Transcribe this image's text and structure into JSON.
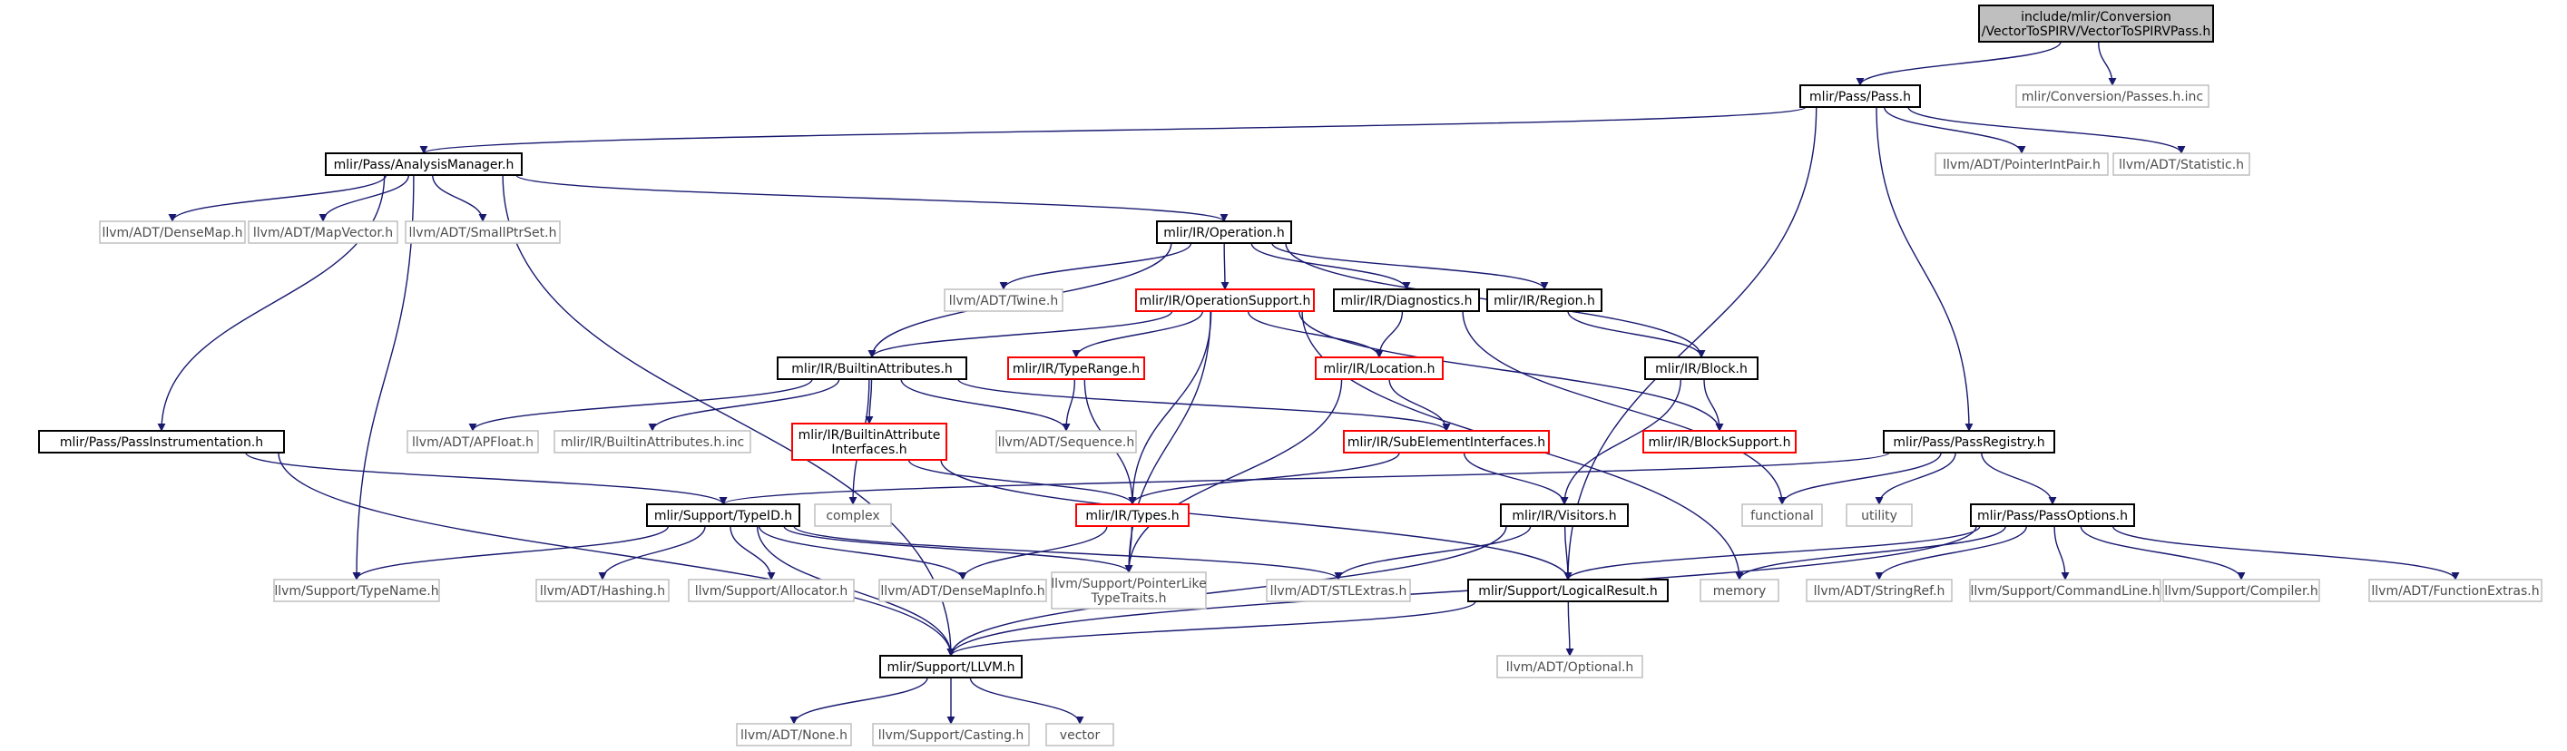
{
  "diagram": {
    "colors": {
      "edge": "#191970",
      "documented_border": "#000000",
      "external_border": "#bfbfbf",
      "truncated_border": "#ff0000",
      "focus_fill": "#bfbfbf"
    },
    "nodes": [
      {
        "id": "root",
        "lines": [
          "include/mlir/Conversion",
          "/VectorToSPIRV/VectorToSPIRVPass.h"
        ],
        "kind": "focus"
      },
      {
        "id": "pass",
        "lines": [
          "mlir/Pass/Pass.h"
        ],
        "kind": "black"
      },
      {
        "id": "passesinc",
        "lines": [
          "mlir/Conversion/Passes.h.inc"
        ],
        "kind": "gray"
      },
      {
        "id": "analysis",
        "lines": [
          "mlir/Pass/AnalysisManager.h"
        ],
        "kind": "black"
      },
      {
        "id": "pointerintpair",
        "lines": [
          "llvm/ADT/PointerIntPair.h"
        ],
        "kind": "gray"
      },
      {
        "id": "statistic",
        "lines": [
          "llvm/ADT/Statistic.h"
        ],
        "kind": "gray"
      },
      {
        "id": "densemap",
        "lines": [
          "llvm/ADT/DenseMap.h"
        ],
        "kind": "gray"
      },
      {
        "id": "mapvector",
        "lines": [
          "llvm/ADT/MapVector.h"
        ],
        "kind": "gray"
      },
      {
        "id": "smallptrset",
        "lines": [
          "llvm/ADT/SmallPtrSet.h"
        ],
        "kind": "gray"
      },
      {
        "id": "operation",
        "lines": [
          "mlir/IR/Operation.h"
        ],
        "kind": "black"
      },
      {
        "id": "twine",
        "lines": [
          "llvm/ADT/Twine.h"
        ],
        "kind": "gray"
      },
      {
        "id": "opsupport",
        "lines": [
          "mlir/IR/OperationSupport.h"
        ],
        "kind": "red"
      },
      {
        "id": "diagnostics",
        "lines": [
          "mlir/IR/Diagnostics.h"
        ],
        "kind": "black"
      },
      {
        "id": "region",
        "lines": [
          "mlir/IR/Region.h"
        ],
        "kind": "black"
      },
      {
        "id": "builtinattrs",
        "lines": [
          "mlir/IR/BuiltinAttributes.h"
        ],
        "kind": "black"
      },
      {
        "id": "typerange",
        "lines": [
          "mlir/IR/TypeRange.h"
        ],
        "kind": "red"
      },
      {
        "id": "location",
        "lines": [
          "mlir/IR/Location.h"
        ],
        "kind": "red"
      },
      {
        "id": "block",
        "lines": [
          "mlir/IR/Block.h"
        ],
        "kind": "black"
      },
      {
        "id": "apfloat",
        "lines": [
          "llvm/ADT/APFloat.h"
        ],
        "kind": "gray"
      },
      {
        "id": "builtininc",
        "lines": [
          "mlir/IR/BuiltinAttributes.h.inc"
        ],
        "kind": "gray"
      },
      {
        "id": "builtinattrif",
        "lines": [
          "mlir/IR/BuiltinAttribute",
          "Interfaces.h"
        ],
        "kind": "red"
      },
      {
        "id": "sequence",
        "lines": [
          "llvm/ADT/Sequence.h"
        ],
        "kind": "gray"
      },
      {
        "id": "subelem",
        "lines": [
          "mlir/IR/SubElementInterfaces.h"
        ],
        "kind": "red"
      },
      {
        "id": "blocksupport",
        "lines": [
          "mlir/IR/BlockSupport.h"
        ],
        "kind": "red"
      },
      {
        "id": "passreg",
        "lines": [
          "mlir/Pass/PassRegistry.h"
        ],
        "kind": "black"
      },
      {
        "id": "passinstr",
        "lines": [
          "mlir/Pass/PassInstrumentation.h"
        ],
        "kind": "black"
      },
      {
        "id": "typeid",
        "lines": [
          "mlir/Support/TypeID.h"
        ],
        "kind": "black"
      },
      {
        "id": "complex",
        "lines": [
          "complex"
        ],
        "kind": "gray"
      },
      {
        "id": "types",
        "lines": [
          "mlir/IR/Types.h"
        ],
        "kind": "red"
      },
      {
        "id": "visitors",
        "lines": [
          "mlir/IR/Visitors.h"
        ],
        "kind": "black"
      },
      {
        "id": "functional",
        "lines": [
          "functional"
        ],
        "kind": "gray"
      },
      {
        "id": "utility",
        "lines": [
          "utility"
        ],
        "kind": "gray"
      },
      {
        "id": "passoptions",
        "lines": [
          "mlir/Pass/PassOptions.h"
        ],
        "kind": "black"
      },
      {
        "id": "typename",
        "lines": [
          "llvm/Support/TypeName.h"
        ],
        "kind": "gray"
      },
      {
        "id": "hashing",
        "lines": [
          "llvm/ADT/Hashing.h"
        ],
        "kind": "gray"
      },
      {
        "id": "allocator",
        "lines": [
          "llvm/Support/Allocator.h"
        ],
        "kind": "gray"
      },
      {
        "id": "densemapinfo",
        "lines": [
          "llvm/ADT/DenseMapInfo.h"
        ],
        "kind": "gray"
      },
      {
        "id": "pointerlike",
        "lines": [
          "llvm/Support/PointerLike",
          "TypeTraits.h"
        ],
        "kind": "gray"
      },
      {
        "id": "stlextras",
        "lines": [
          "llvm/ADT/STLExtras.h"
        ],
        "kind": "gray"
      },
      {
        "id": "logicalresult",
        "lines": [
          "mlir/Support/LogicalResult.h"
        ],
        "kind": "black"
      },
      {
        "id": "memory",
        "lines": [
          "memory"
        ],
        "kind": "gray"
      },
      {
        "id": "stringref",
        "lines": [
          "llvm/ADT/StringRef.h"
        ],
        "kind": "gray"
      },
      {
        "id": "commandline",
        "lines": [
          "llvm/Support/CommandLine.h"
        ],
        "kind": "gray"
      },
      {
        "id": "compiler",
        "lines": [
          "llvm/Support/Compiler.h"
        ],
        "kind": "gray"
      },
      {
        "id": "functionextras",
        "lines": [
          "llvm/ADT/FunctionExtras.h"
        ],
        "kind": "gray"
      },
      {
        "id": "llvmh",
        "lines": [
          "mlir/Support/LLVM.h"
        ],
        "kind": "black"
      },
      {
        "id": "optional",
        "lines": [
          "llvm/ADT/Optional.h"
        ],
        "kind": "gray"
      },
      {
        "id": "none",
        "lines": [
          "llvm/ADT/None.h"
        ],
        "kind": "gray"
      },
      {
        "id": "casting",
        "lines": [
          "llvm/Support/Casting.h"
        ],
        "kind": "gray"
      },
      {
        "id": "vector",
        "lines": [
          "vector"
        ],
        "kind": "gray"
      }
    ],
    "edges": [
      [
        "root",
        "pass"
      ],
      [
        "root",
        "passesinc"
      ],
      [
        "pass",
        "analysis"
      ],
      [
        "pass",
        "pointerintpair"
      ],
      [
        "pass",
        "statistic"
      ],
      [
        "pass",
        "passreg"
      ],
      [
        "pass",
        "logicalresult"
      ],
      [
        "analysis",
        "densemap"
      ],
      [
        "analysis",
        "mapvector"
      ],
      [
        "analysis",
        "smallptrset"
      ],
      [
        "analysis",
        "operation"
      ],
      [
        "analysis",
        "passinstr"
      ],
      [
        "analysis",
        "typename"
      ],
      [
        "analysis",
        "llvmh"
      ],
      [
        "operation",
        "twine"
      ],
      [
        "operation",
        "opsupport"
      ],
      [
        "operation",
        "diagnostics"
      ],
      [
        "operation",
        "region"
      ],
      [
        "operation",
        "block"
      ],
      [
        "operation",
        "builtinattrs"
      ],
      [
        "opsupport",
        "builtinattrs"
      ],
      [
        "opsupport",
        "typerange"
      ],
      [
        "opsupport",
        "location"
      ],
      [
        "opsupport",
        "blocksupport"
      ],
      [
        "opsupport",
        "types"
      ],
      [
        "opsupport",
        "pointerlike"
      ],
      [
        "opsupport",
        "memory"
      ],
      [
        "diagnostics",
        "location"
      ],
      [
        "diagnostics",
        "functional"
      ],
      [
        "region",
        "block"
      ],
      [
        "block",
        "blocksupport"
      ],
      [
        "block",
        "visitors"
      ],
      [
        "builtinattrs",
        "apfloat"
      ],
      [
        "builtinattrs",
        "builtininc"
      ],
      [
        "builtinattrs",
        "builtinattrif"
      ],
      [
        "builtinattrs",
        "sequence"
      ],
      [
        "builtinattrs",
        "subelem"
      ],
      [
        "builtinattrs",
        "complex"
      ],
      [
        "typerange",
        "sequence"
      ],
      [
        "typerange",
        "types"
      ],
      [
        "location",
        "subelem"
      ],
      [
        "location",
        "pointerlike"
      ],
      [
        "builtinattrif",
        "types"
      ],
      [
        "builtinattrif",
        "logicalresult"
      ],
      [
        "subelem",
        "types"
      ],
      [
        "subelem",
        "visitors"
      ],
      [
        "passreg",
        "typeid"
      ],
      [
        "passreg",
        "functional"
      ],
      [
        "passreg",
        "utility"
      ],
      [
        "passreg",
        "passoptions"
      ],
      [
        "passinstr",
        "typeid"
      ],
      [
        "passinstr",
        "llvmh"
      ],
      [
        "typeid",
        "typename"
      ],
      [
        "typeid",
        "hashing"
      ],
      [
        "typeid",
        "allocator"
      ],
      [
        "typeid",
        "densemapinfo"
      ],
      [
        "typeid",
        "pointerlike"
      ],
      [
        "typeid",
        "stlextras"
      ],
      [
        "typeid",
        "llvmh"
      ],
      [
        "types",
        "densemapinfo"
      ],
      [
        "types",
        "pointerlike"
      ],
      [
        "visitors",
        "stlextras"
      ],
      [
        "visitors",
        "logicalresult"
      ],
      [
        "visitors",
        "llvmh"
      ],
      [
        "passoptions",
        "logicalresult"
      ],
      [
        "passoptions",
        "memory"
      ],
      [
        "passoptions",
        "stringref"
      ],
      [
        "passoptions",
        "commandline"
      ],
      [
        "passoptions",
        "compiler"
      ],
      [
        "passoptions",
        "functionextras"
      ],
      [
        "passoptions",
        "llvmh"
      ],
      [
        "logicalresult",
        "llvmh"
      ],
      [
        "logicalresult",
        "optional"
      ],
      [
        "llvmh",
        "none"
      ],
      [
        "llvmh",
        "casting"
      ],
      [
        "llvmh",
        "vector"
      ]
    ]
  }
}
